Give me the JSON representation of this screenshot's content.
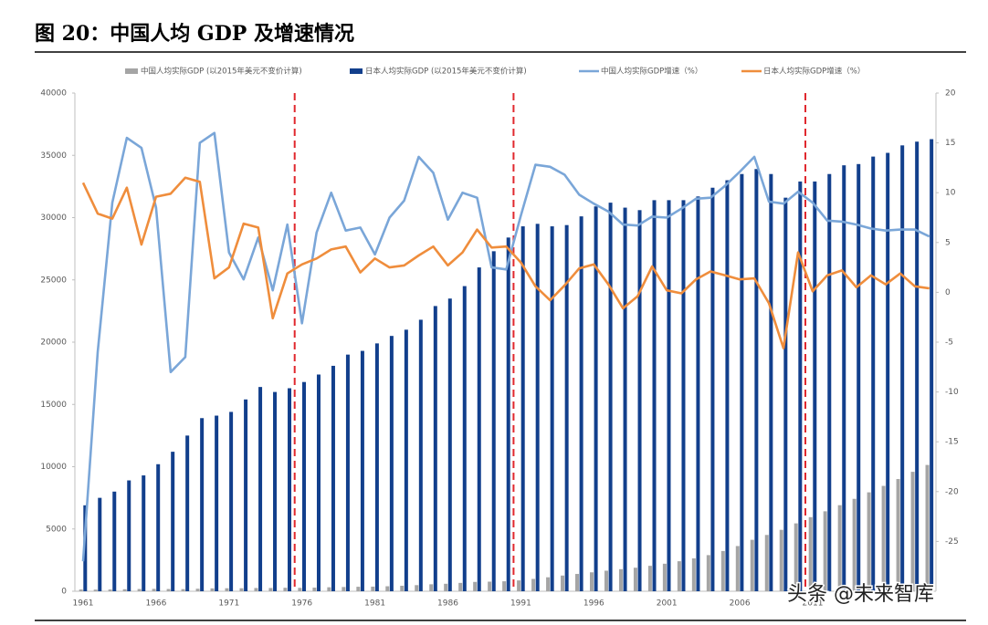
{
  "chart_data": {
    "type": "combo",
    "title": "图 20：中国人均 GDP 及增速情况",
    "watermark": "头条 @未来智库",
    "categories": [
      "1961",
      null,
      null,
      null,
      null,
      "1966",
      null,
      null,
      null,
      null,
      "1971",
      null,
      null,
      null,
      null,
      "1976",
      null,
      null,
      null,
      null,
      "1981",
      null,
      null,
      null,
      null,
      "1986",
      null,
      null,
      null,
      null,
      "1991",
      null,
      null,
      null,
      null,
      "1996",
      null,
      null,
      null,
      null,
      "2001",
      null,
      null,
      null,
      null,
      "2006",
      null,
      null,
      null,
      null,
      "2011",
      null,
      null,
      null,
      null,
      null,
      null,
      null,
      null
    ],
    "ylim": [
      0,
      40000
    ],
    "yticks": [
      0,
      5000,
      10000,
      15000,
      20000,
      25000,
      30000,
      35000,
      40000
    ],
    "y2lim": [
      -30,
      20
    ],
    "y2ticks": [
      -25,
      -20,
      -15,
      -10,
      -5,
      0,
      5,
      10,
      15,
      20
    ],
    "reference_lines": [
      1975.5,
      1990.5,
      2010.5
    ],
    "reference_color": "#e0282e",
    "first_year": 1961,
    "series": [
      {
        "name": "中国人均实际GDP (以2015年美元不变价计算)",
        "kind": "bar",
        "color": "#a5a5a5",
        "values": [
          140,
          130,
          140,
          160,
          180,
          190,
          180,
          170,
          200,
          230,
          240,
          240,
          260,
          260,
          280,
          270,
          290,
          320,
          340,
          360,
          370,
          400,
          440,
          490,
          560,
          600,
          670,
          750,
          770,
          800,
          870,
          990,
          1120,
          1260,
          1390,
          1520,
          1650,
          1770,
          1890,
          2040,
          2210,
          2410,
          2640,
          2900,
          3230,
          3630,
          4130,
          4520,
          4930,
          5450,
          5950,
          6420,
          6910,
          7420,
          7940,
          8460,
          9010,
          9590,
          10140
        ]
      },
      {
        "name": "日本人均实际GDP (以2015年美元不变价计算)",
        "kind": "bar",
        "color": "#123f8c",
        "values": [
          6900,
          7500,
          8000,
          8900,
          9300,
          10200,
          11200,
          12500,
          13900,
          14100,
          14400,
          15400,
          16400,
          16000,
          16300,
          16800,
          17400,
          18100,
          19000,
          19300,
          19900,
          20500,
          21000,
          21800,
          22900,
          23500,
          24500,
          26000,
          27300,
          28400,
          29300,
          29500,
          29300,
          29400,
          30100,
          30900,
          31200,
          30800,
          30600,
          31400,
          31400,
          31400,
          31700,
          32400,
          33000,
          33500,
          33900,
          33500,
          31600,
          32900,
          32900,
          33500,
          34200,
          34300,
          34900,
          35200,
          35800,
          36100,
          36300
        ]
      },
      {
        "name": "中国人均实际GDP增速（%）",
        "kind": "line",
        "axis": "y2",
        "color": "#7aa6d8",
        "values": [
          -27,
          -6,
          9,
          15.5,
          14.5,
          8.5,
          -8,
          -6.5,
          15,
          16,
          4,
          1.3,
          5.5,
          0.2,
          6.8,
          -3.1,
          6,
          10,
          6.2,
          6.5,
          3.8,
          7.5,
          9.2,
          13.6,
          12,
          7.3,
          10,
          9.5,
          2.5,
          2.3,
          7.7,
          12.8,
          12.6,
          11.8,
          9.8,
          8.9,
          8.1,
          6.8,
          6.7,
          7.6,
          7.5,
          8.4,
          9.4,
          9.5,
          10.7,
          12.1,
          13.6,
          9.1,
          8.9,
          10.1,
          9,
          7.2,
          7.1,
          6.8,
          6.4,
          6.2,
          6.3,
          6.3,
          5.6
        ]
      },
      {
        "name": "日本人均实际GDP增速（%）",
        "kind": "line",
        "axis": "y2",
        "color": "#ef8d3c",
        "values": [
          11,
          7.9,
          7.4,
          10.5,
          4.8,
          9.6,
          9.9,
          11.5,
          11.1,
          1.4,
          2.5,
          6.9,
          6.5,
          -2.6,
          1.9,
          2.8,
          3.4,
          4.3,
          4.6,
          2,
          3.4,
          2.5,
          2.7,
          3.7,
          4.6,
          2.7,
          4,
          6.3,
          4.5,
          4.6,
          3,
          0.6,
          -0.8,
          0.7,
          2.4,
          2.8,
          0.8,
          -1.6,
          -0.4,
          2.6,
          0.2,
          -0.1,
          1.3,
          2.1,
          1.7,
          1.3,
          1.4,
          -1.1,
          -5.6,
          4,
          0.1,
          1.7,
          2.2,
          0.5,
          1.7,
          0.8,
          1.9,
          0.6,
          0.4
        ]
      }
    ]
  }
}
